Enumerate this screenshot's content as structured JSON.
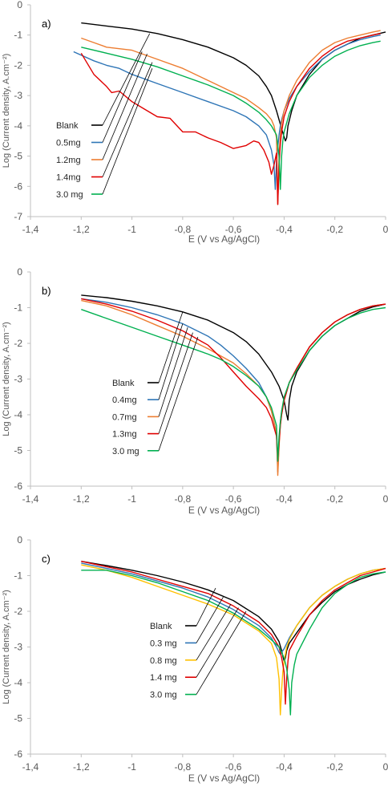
{
  "chart_data": [
    {
      "type": "line",
      "panel_label": "a)",
      "xlabel": "E (V vs Ag/AgCl)",
      "ylabel": "Log (Current density, A.cm⁻²)",
      "xlim": [
        -1.4,
        0
      ],
      "ylim": [
        -7,
        0
      ],
      "x_ticks": [
        "-1,4",
        "-1,2",
        "-1",
        "-0,8",
        "-0,6",
        "-0,4",
        "-0,2",
        "0"
      ],
      "y_ticks": [
        "0",
        "-1",
        "-2",
        "-3",
        "-4",
        "-5",
        "-6",
        "-7"
      ],
      "grid": false,
      "legend_position": "lower-left, with leader lines to curves",
      "series": [
        {
          "name": "Blank",
          "color": "#000000",
          "x": [
            -1.2,
            -1.1,
            -1.0,
            -0.9,
            -0.8,
            -0.7,
            -0.6,
            -0.55,
            -0.5,
            -0.47,
            -0.45,
            -0.43,
            -0.41,
            -0.395,
            -0.39,
            -0.385,
            -0.37,
            -0.35,
            -0.3,
            -0.25,
            -0.2,
            -0.15,
            -0.1,
            -0.05,
            0.0
          ],
          "y": [
            -0.6,
            -0.7,
            -0.8,
            -0.95,
            -1.15,
            -1.4,
            -1.75,
            -2.0,
            -2.35,
            -2.7,
            -3.0,
            -3.5,
            -4.1,
            -4.5,
            -4.4,
            -4.0,
            -3.5,
            -3.0,
            -2.3,
            -1.8,
            -1.5,
            -1.3,
            -1.1,
            -1.0,
            -0.9
          ]
        },
        {
          "name": "0.5mg",
          "color": "#2E75B6",
          "x": [
            -1.23,
            -1.15,
            -1.1,
            -1.05,
            -1.0,
            -0.9,
            -0.8,
            -0.7,
            -0.6,
            -0.55,
            -0.5,
            -0.47,
            -0.45,
            -0.44,
            -0.435,
            -0.43,
            -0.425,
            -0.42,
            -0.415,
            -0.41,
            -0.4,
            -0.38,
            -0.35,
            -0.3,
            -0.25,
            -0.2,
            -0.15,
            -0.1,
            -0.05,
            -0.02
          ],
          "y": [
            -1.55,
            -1.85,
            -2.0,
            -2.1,
            -2.3,
            -2.6,
            -2.9,
            -3.2,
            -3.5,
            -3.7,
            -4.0,
            -4.3,
            -4.8,
            -5.3,
            -6.1,
            -5.2,
            -4.7,
            -4.3,
            -4.0,
            -3.8,
            -3.5,
            -3.1,
            -2.7,
            -2.2,
            -1.8,
            -1.5,
            -1.3,
            -1.15,
            -1.05,
            -1.0
          ]
        },
        {
          "name": "1.2mg",
          "color": "#ED7D31",
          "x": [
            -1.2,
            -1.15,
            -1.1,
            -1.0,
            -0.9,
            -0.8,
            -0.7,
            -0.6,
            -0.55,
            -0.5,
            -0.47,
            -0.45,
            -0.44,
            -0.43,
            -0.425,
            -0.42,
            -0.415,
            -0.41,
            -0.4,
            -0.38,
            -0.35,
            -0.3,
            -0.25,
            -0.2,
            -0.15,
            -0.1,
            -0.05,
            -0.02
          ],
          "y": [
            -1.1,
            -1.25,
            -1.4,
            -1.5,
            -1.8,
            -2.1,
            -2.5,
            -2.9,
            -3.1,
            -3.4,
            -3.6,
            -3.8,
            -4.0,
            -4.4,
            -6.6,
            -5.0,
            -4.3,
            -3.9,
            -3.5,
            -3.0,
            -2.5,
            -1.9,
            -1.5,
            -1.25,
            -1.1,
            -1.0,
            -0.9,
            -0.85
          ]
        },
        {
          "name": "1.4mg",
          "color": "#E00000",
          "x": [
            -1.2,
            -1.15,
            -1.1,
            -1.08,
            -1.05,
            -1.0,
            -0.95,
            -0.9,
            -0.85,
            -0.8,
            -0.75,
            -0.7,
            -0.65,
            -0.6,
            -0.55,
            -0.52,
            -0.5,
            -0.48,
            -0.46,
            -0.45,
            -0.44,
            -0.43,
            -0.425,
            -0.42,
            -0.415,
            -0.41,
            -0.4,
            -0.38,
            -0.35,
            -0.3,
            -0.25,
            -0.2,
            -0.15,
            -0.1,
            -0.05,
            -0.02
          ],
          "y": [
            -1.6,
            -2.3,
            -2.7,
            -2.9,
            -2.85,
            -3.2,
            -3.45,
            -3.7,
            -3.75,
            -4.2,
            -4.2,
            -4.4,
            -4.55,
            -4.75,
            -4.65,
            -4.5,
            -4.55,
            -4.8,
            -5.2,
            -5.6,
            -5.3,
            -4.9,
            -6.6,
            -5.3,
            -4.6,
            -4.2,
            -3.7,
            -3.2,
            -2.7,
            -2.1,
            -1.7,
            -1.4,
            -1.2,
            -1.1,
            -1.0,
            -0.95
          ]
        },
        {
          "name": "3.0 mg",
          "color": "#00B050",
          "x": [
            -1.2,
            -1.1,
            -1.0,
            -0.9,
            -0.8,
            -0.7,
            -0.6,
            -0.55,
            -0.5,
            -0.47,
            -0.45,
            -0.43,
            -0.42,
            -0.415,
            -0.41,
            -0.405,
            -0.4,
            -0.38,
            -0.35,
            -0.3,
            -0.25,
            -0.2,
            -0.15,
            -0.1,
            -0.05,
            -0.02
          ],
          "y": [
            -1.4,
            -1.6,
            -1.8,
            -2.05,
            -2.35,
            -2.65,
            -3.0,
            -3.25,
            -3.55,
            -3.8,
            -4.0,
            -4.3,
            -5.0,
            -6.1,
            -5.0,
            -4.5,
            -4.2,
            -3.6,
            -3.0,
            -2.4,
            -2.0,
            -1.7,
            -1.5,
            -1.35,
            -1.25,
            -1.2
          ]
        }
      ]
    },
    {
      "type": "line",
      "panel_label": "b)",
      "xlabel": "E (V vs Ag/AgCl)",
      "ylabel": "Log (Current density, A.cm⁻²)",
      "xlim": [
        -1.4,
        0
      ],
      "ylim": [
        -6,
        0
      ],
      "x_ticks": [
        "-1,4",
        "-1,2",
        "-1",
        "-0,8",
        "-0,6",
        "-0,4",
        "-0,2",
        "0"
      ],
      "y_ticks": [
        "0",
        "-1",
        "-2",
        "-3",
        "-4",
        "-5",
        "-6"
      ],
      "grid": false,
      "legend_position": "lower-left, with leader lines to curves",
      "series": [
        {
          "name": "Blank",
          "color": "#000000",
          "x": [
            -1.2,
            -1.1,
            -1.0,
            -0.9,
            -0.8,
            -0.7,
            -0.6,
            -0.55,
            -0.5,
            -0.45,
            -0.42,
            -0.4,
            -0.39,
            -0.385,
            -0.38,
            -0.37,
            -0.35,
            -0.3,
            -0.25,
            -0.2,
            -0.15,
            -0.1,
            -0.05,
            0.0
          ],
          "y": [
            -0.65,
            -0.72,
            -0.82,
            -0.95,
            -1.12,
            -1.35,
            -1.7,
            -1.95,
            -2.3,
            -2.8,
            -3.2,
            -3.6,
            -4.0,
            -4.15,
            -3.6,
            -3.2,
            -2.8,
            -2.2,
            -1.8,
            -1.5,
            -1.3,
            -1.1,
            -0.98,
            -0.9
          ]
        },
        {
          "name": "0.4mg",
          "color": "#2E75B6",
          "x": [
            -1.2,
            -1.1,
            -1.0,
            -0.9,
            -0.8,
            -0.7,
            -0.65,
            -0.6,
            -0.55,
            -0.5,
            -0.47,
            -0.45,
            -0.43,
            -0.425,
            -0.42,
            -0.415,
            -0.41,
            -0.4,
            -0.38,
            -0.35,
            -0.3,
            -0.25,
            -0.2,
            -0.15,
            -0.1,
            -0.05,
            0.0
          ],
          "y": [
            -0.75,
            -0.85,
            -1.0,
            -1.2,
            -1.45,
            -1.8,
            -2.05,
            -2.35,
            -2.7,
            -3.1,
            -3.5,
            -3.9,
            -4.5,
            -5.6,
            -4.8,
            -4.2,
            -3.9,
            -3.6,
            -3.1,
            -2.7,
            -2.1,
            -1.7,
            -1.4,
            -1.2,
            -1.05,
            -0.95,
            -0.9
          ]
        },
        {
          "name": "0.7mg",
          "color": "#ED7D31",
          "x": [
            -1.2,
            -1.1,
            -1.0,
            -0.9,
            -0.8,
            -0.7,
            -0.65,
            -0.6,
            -0.55,
            -0.5,
            -0.47,
            -0.45,
            -0.43,
            -0.425,
            -0.42,
            -0.415,
            -0.41,
            -0.4,
            -0.38,
            -0.35,
            -0.3,
            -0.25,
            -0.2,
            -0.15,
            -0.1,
            -0.05,
            0.0
          ],
          "y": [
            -0.8,
            -0.95,
            -1.2,
            -1.5,
            -1.8,
            -2.15,
            -2.35,
            -2.55,
            -2.85,
            -3.2,
            -3.5,
            -3.9,
            -4.5,
            -5.7,
            -4.9,
            -4.3,
            -4.0,
            -3.6,
            -3.1,
            -2.7,
            -2.1,
            -1.7,
            -1.4,
            -1.2,
            -1.05,
            -0.95,
            -0.9
          ]
        },
        {
          "name": "1.3mg",
          "color": "#E00000",
          "x": [
            -1.2,
            -1.1,
            -1.0,
            -0.9,
            -0.8,
            -0.7,
            -0.65,
            -0.6,
            -0.55,
            -0.5,
            -0.47,
            -0.45,
            -0.43,
            -0.425,
            -0.42,
            -0.415,
            -0.41,
            -0.4,
            -0.38,
            -0.35,
            -0.3,
            -0.25,
            -0.2,
            -0.15,
            -0.1,
            -0.05,
            0.0
          ],
          "y": [
            -0.75,
            -0.9,
            -1.1,
            -1.35,
            -1.65,
            -2.05,
            -2.4,
            -2.8,
            -3.2,
            -3.55,
            -3.8,
            -4.1,
            -4.6,
            -5.3,
            -4.8,
            -4.3,
            -4.0,
            -3.6,
            -3.1,
            -2.7,
            -2.1,
            -1.7,
            -1.4,
            -1.2,
            -1.05,
            -0.95,
            -0.9
          ]
        },
        {
          "name": "3.0 mg",
          "color": "#00B050",
          "x": [
            -1.2,
            -1.1,
            -1.0,
            -0.9,
            -0.8,
            -0.7,
            -0.65,
            -0.6,
            -0.55,
            -0.5,
            -0.47,
            -0.45,
            -0.43,
            -0.425,
            -0.42,
            -0.415,
            -0.41,
            -0.4,
            -0.38,
            -0.35,
            -0.3,
            -0.25,
            -0.2,
            -0.15,
            -0.1,
            -0.05,
            0.0
          ],
          "y": [
            -1.05,
            -1.3,
            -1.55,
            -1.8,
            -2.05,
            -2.3,
            -2.45,
            -2.65,
            -2.9,
            -3.2,
            -3.5,
            -3.8,
            -4.3,
            -5.3,
            -4.6,
            -4.2,
            -3.9,
            -3.5,
            -3.1,
            -2.75,
            -2.2,
            -1.8,
            -1.5,
            -1.3,
            -1.15,
            -1.05,
            -1.0
          ]
        }
      ]
    },
    {
      "type": "line",
      "panel_label": "c)",
      "xlabel": "E (V vs Ag/AgCl)",
      "ylabel": "Log (Current density, A.cm⁻²)",
      "xlim": [
        -1.4,
        0
      ],
      "ylim": [
        -6,
        0
      ],
      "x_ticks": [
        "-1,4",
        "-1,2",
        "-1",
        "-0,8",
        "-0,6",
        "-0,4",
        "-0,2",
        "0"
      ],
      "y_ticks": [
        "0",
        "-1",
        "-2",
        "-3",
        "-4",
        "-5",
        "-6"
      ],
      "grid": false,
      "legend_position": "lower-left, with leader lines to curves",
      "series": [
        {
          "name": "Blank",
          "color": "#000000",
          "x": [
            -1.2,
            -1.1,
            -1.0,
            -0.9,
            -0.8,
            -0.7,
            -0.6,
            -0.5,
            -0.45,
            -0.42,
            -0.41,
            -0.405,
            -0.4,
            -0.395,
            -0.39,
            -0.38,
            -0.35,
            -0.3,
            -0.25,
            -0.2,
            -0.15,
            -0.1,
            -0.05,
            0.0
          ],
          "y": [
            -0.6,
            -0.72,
            -0.85,
            -1.0,
            -1.18,
            -1.4,
            -1.7,
            -2.15,
            -2.5,
            -2.85,
            -3.1,
            -3.25,
            -3.4,
            -3.3,
            -3.1,
            -2.9,
            -2.6,
            -2.1,
            -1.75,
            -1.45,
            -1.25,
            -1.1,
            -0.98,
            -0.9
          ]
        },
        {
          "name": "0.3 mg",
          "color": "#2E75B6",
          "x": [
            -1.2,
            -1.1,
            -1.0,
            -0.9,
            -0.8,
            -0.7,
            -0.6,
            -0.5,
            -0.45,
            -0.43,
            -0.42,
            -0.415,
            -0.41,
            -0.4,
            -0.39,
            -0.38,
            -0.35,
            -0.3,
            -0.25,
            -0.2,
            -0.15,
            -0.1,
            -0.05,
            0.0
          ],
          "y": [
            -0.65,
            -0.8,
            -0.95,
            -1.15,
            -1.35,
            -1.6,
            -1.95,
            -2.4,
            -2.75,
            -3.0,
            -3.15,
            -3.2,
            -3.15,
            -3.05,
            -2.9,
            -2.75,
            -2.4,
            -1.9,
            -1.55,
            -1.3,
            -1.1,
            -0.95,
            -0.85,
            -0.8
          ]
        },
        {
          "name": "0.8 mg",
          "color": "#FFC000",
          "x": [
            -1.2,
            -1.1,
            -1.0,
            -0.9,
            -0.8,
            -0.7,
            -0.6,
            -0.5,
            -0.45,
            -0.43,
            -0.42,
            -0.415,
            -0.41,
            -0.405,
            -0.4,
            -0.39,
            -0.38,
            -0.35,
            -0.3,
            -0.25,
            -0.2,
            -0.15,
            -0.1,
            -0.05,
            0.0
          ],
          "y": [
            -0.7,
            -0.85,
            -1.05,
            -1.3,
            -1.55,
            -1.8,
            -2.1,
            -2.55,
            -2.9,
            -3.3,
            -3.9,
            -4.9,
            -4.2,
            -3.7,
            -3.4,
            -3.0,
            -2.8,
            -2.4,
            -1.9,
            -1.55,
            -1.3,
            -1.1,
            -0.95,
            -0.85,
            -0.8
          ]
        },
        {
          "name": "1.4 mg",
          "color": "#E00000",
          "x": [
            -1.2,
            -1.1,
            -1.0,
            -0.9,
            -0.8,
            -0.7,
            -0.6,
            -0.5,
            -0.45,
            -0.42,
            -0.41,
            -0.4,
            -0.395,
            -0.39,
            -0.385,
            -0.38,
            -0.35,
            -0.3,
            -0.25,
            -0.2,
            -0.15,
            -0.1,
            -0.05,
            0.0
          ],
          "y": [
            -0.6,
            -0.75,
            -0.9,
            -1.1,
            -1.3,
            -1.5,
            -1.85,
            -2.3,
            -2.65,
            -3.0,
            -3.3,
            -3.7,
            -4.6,
            -3.9,
            -3.4,
            -3.1,
            -2.7,
            -2.1,
            -1.7,
            -1.4,
            -1.2,
            -1.0,
            -0.9,
            -0.8
          ]
        },
        {
          "name": "3.0 mg",
          "color": "#00B050",
          "x": [
            -1.2,
            -1.1,
            -1.0,
            -0.9,
            -0.8,
            -0.7,
            -0.6,
            -0.5,
            -0.45,
            -0.42,
            -0.4,
            -0.39,
            -0.38,
            -0.375,
            -0.37,
            -0.36,
            -0.35,
            -0.3,
            -0.25,
            -0.2,
            -0.15,
            -0.1,
            -0.05,
            0.0
          ],
          "y": [
            -0.85,
            -0.85,
            -1.0,
            -1.2,
            -1.45,
            -1.7,
            -2.05,
            -2.5,
            -2.8,
            -3.0,
            -3.3,
            -3.6,
            -4.2,
            -4.9,
            -4.0,
            -3.5,
            -3.2,
            -2.5,
            -1.9,
            -1.5,
            -1.25,
            -1.05,
            -0.95,
            -0.9
          ]
        }
      ]
    }
  ]
}
